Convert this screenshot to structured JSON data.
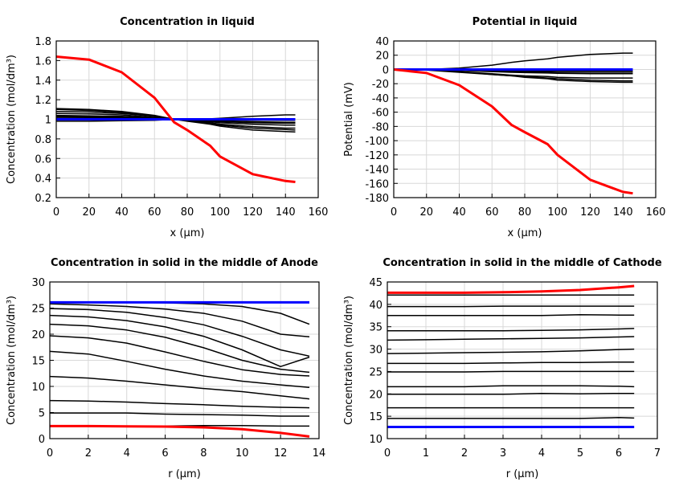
{
  "chart_data": [
    {
      "type": "line",
      "title": "Concentration in liquid",
      "xlabel": "x (μm)",
      "ylabel": "Concentration (mol/dm³)",
      "xlim": [
        0,
        160
      ],
      "ylim": [
        0.2,
        1.8
      ],
      "xticks": [
        0,
        20,
        40,
        60,
        80,
        100,
        120,
        140,
        160
      ],
      "yticks": [
        0.2,
        0.4,
        0.6,
        0.8,
        1,
        1.2,
        1.4,
        1.6,
        1.8
      ],
      "grid": true,
      "x": [
        0,
        20,
        40,
        60,
        72,
        80,
        94,
        100,
        120,
        140,
        146
      ],
      "series": [
        {
          "color": "#000000",
          "values": [
            1.11,
            1.1,
            1.08,
            1.04,
            1.0,
            0.98,
            0.95,
            0.93,
            0.89,
            0.875,
            0.87
          ]
        },
        {
          "color": "#000000",
          "values": [
            1.1,
            1.09,
            1.07,
            1.035,
            1.0,
            0.985,
            0.96,
            0.94,
            0.91,
            0.895,
            0.89
          ]
        },
        {
          "color": "#000000",
          "values": [
            1.08,
            1.075,
            1.06,
            1.03,
            1.0,
            0.99,
            0.965,
            0.95,
            0.925,
            0.91,
            0.91
          ]
        },
        {
          "color": "#000000",
          "values": [
            1.06,
            1.055,
            1.045,
            1.02,
            1.0,
            0.99,
            0.975,
            0.965,
            0.95,
            0.94,
            0.94
          ]
        },
        {
          "color": "#000000",
          "values": [
            1.04,
            1.035,
            1.03,
            1.015,
            1.0,
            0.995,
            0.985,
            0.975,
            0.965,
            0.96,
            0.96
          ]
        },
        {
          "color": "#000000",
          "values": [
            1.03,
            1.028,
            1.022,
            1.01,
            1.0,
            0.997,
            0.99,
            0.985,
            0.975,
            0.97,
            0.97
          ]
        },
        {
          "color": "#000000",
          "values": [
            1.02,
            1.018,
            1.015,
            1.008,
            1.0,
            0.999,
            0.996,
            0.994,
            0.991,
            0.99,
            0.99
          ]
        },
        {
          "color": "#000000",
          "values": [
            0.98,
            0.98,
            0.985,
            0.99,
            1.0,
            1.0,
            1.005,
            1.01,
            1.03,
            1.045,
            1.045
          ]
        },
        {
          "color": "#0000ff",
          "values": [
            1,
            1,
            1,
            1,
            1,
            1,
            1,
            1,
            1,
            1,
            1
          ]
        },
        {
          "color": "#ff0000",
          "values": [
            1.64,
            1.61,
            1.48,
            1.22,
            0.97,
            0.89,
            0.73,
            0.62,
            0.44,
            0.37,
            0.36
          ]
        }
      ]
    },
    {
      "type": "line",
      "title": "Potential in liquid",
      "xlabel": "x (μm)",
      "ylabel": "Potential (mV)",
      "xlim": [
        0,
        160
      ],
      "ylim": [
        -180,
        40
      ],
      "xticks": [
        0,
        20,
        40,
        60,
        80,
        100,
        120,
        140,
        160
      ],
      "yticks": [
        -180,
        -160,
        -140,
        -120,
        -100,
        -80,
        -60,
        -40,
        -20,
        0,
        20,
        40
      ],
      "grid": true,
      "x": [
        0,
        20,
        40,
        60,
        72,
        80,
        94,
        100,
        120,
        140,
        146
      ],
      "series": [
        {
          "color": "#000000",
          "values": [
            0,
            0,
            2,
            6,
            10,
            12,
            15,
            17,
            21,
            23,
            23
          ]
        },
        {
          "color": "#000000",
          "values": [
            0,
            0,
            -1,
            -1.5,
            -2,
            -2,
            -2,
            -2,
            -2,
            -2,
            -2
          ]
        },
        {
          "color": "#000000",
          "values": [
            0,
            0,
            -1,
            -2,
            -3,
            -3,
            -3.5,
            -4,
            -4,
            -4,
            -4
          ]
        },
        {
          "color": "#000000",
          "values": [
            0,
            0,
            -1.5,
            -3,
            -4,
            -4.5,
            -5,
            -5.5,
            -6,
            -6,
            -6
          ]
        },
        {
          "color": "#000000",
          "values": [
            0,
            -0.5,
            -3,
            -6,
            -8,
            -9,
            -10,
            -11,
            -12,
            -12,
            -12
          ]
        },
        {
          "color": "#000000",
          "values": [
            0,
            -0.5,
            -3,
            -7,
            -9,
            -10,
            -12,
            -13,
            -15,
            -16,
            -16
          ]
        },
        {
          "color": "#000000",
          "values": [
            0,
            -1,
            -4,
            -7,
            -9,
            -11,
            -13,
            -15,
            -17,
            -18,
            -18
          ]
        },
        {
          "color": "#0000ff",
          "values": [
            0,
            0,
            0,
            0,
            0,
            0,
            0,
            0,
            0,
            0,
            0
          ]
        },
        {
          "color": "#ff0000",
          "values": [
            0,
            -5,
            -22,
            -52,
            -78,
            -88,
            -105,
            -120,
            -155,
            -172,
            -174
          ]
        }
      ]
    },
    {
      "type": "line",
      "title": "Concentration in solid in the middle of Anode",
      "xlabel": "r (μm)",
      "ylabel": "Concentration (mol/dm³)",
      "xlim": [
        0,
        14
      ],
      "ylim": [
        0,
        30
      ],
      "xticks": [
        0,
        2,
        4,
        6,
        8,
        10,
        12,
        14
      ],
      "yticks": [
        0,
        5,
        10,
        15,
        20,
        25,
        30
      ],
      "grid": true,
      "x": [
        0,
        2,
        4,
        6,
        8,
        10,
        12,
        13.5
      ],
      "series": [
        {
          "color": "#000000",
          "values": [
            26.1,
            26.1,
            26.1,
            26.0,
            25.8,
            25.3,
            24.0,
            21.9
          ]
        },
        {
          "color": "#000000",
          "values": [
            25.8,
            25.6,
            25.3,
            24.8,
            24.0,
            22.5,
            20.0,
            19.5
          ]
        },
        {
          "color": "#000000",
          "values": [
            24.9,
            24.7,
            24.2,
            23.2,
            21.8,
            19.6,
            17.0,
            15.8
          ]
        },
        {
          "color": "#000000",
          "values": [
            23.6,
            23.3,
            22.6,
            21.4,
            19.6,
            17.0,
            13.8,
            15.6
          ]
        },
        {
          "color": "#000000",
          "values": [
            21.9,
            21.6,
            20.8,
            19.4,
            17.4,
            15.0,
            13.3,
            12.7
          ]
        },
        {
          "color": "#000000",
          "values": [
            19.7,
            19.3,
            18.3,
            16.6,
            14.8,
            13.2,
            12.3,
            12.0
          ]
        },
        {
          "color": "#000000",
          "values": [
            16.7,
            16.2,
            14.8,
            13.3,
            12.0,
            11.0,
            10.3,
            9.8
          ]
        },
        {
          "color": "#000000",
          "values": [
            11.9,
            11.6,
            11.0,
            10.3,
            9.6,
            9.0,
            8.2,
            7.6
          ]
        },
        {
          "color": "#000000",
          "values": [
            7.3,
            7.2,
            7.0,
            6.7,
            6.5,
            6.2,
            6.0,
            5.9
          ]
        },
        {
          "color": "#000000",
          "values": [
            4.9,
            4.9,
            4.9,
            4.7,
            4.6,
            4.5,
            4.3,
            4.3
          ]
        },
        {
          "color": "#000000",
          "values": [
            2.4,
            2.4,
            2.4,
            2.4,
            2.5,
            2.5,
            2.4,
            2.4
          ]
        },
        {
          "color": "#0000ff",
          "values": [
            26.1,
            26.1,
            26.1,
            26.1,
            26.1,
            26.1,
            26.1,
            26.1
          ]
        },
        {
          "color": "#ff0000",
          "values": [
            2.4,
            2.4,
            2.35,
            2.3,
            2.15,
            1.8,
            1.1,
            0.4
          ]
        }
      ]
    },
    {
      "type": "line",
      "title": "Concentration in solid in the middle of Cathode",
      "xlabel": "r (μm)",
      "ylabel": "Concentration (mol/dm³)",
      "xlim": [
        0,
        7
      ],
      "ylim": [
        10,
        45
      ],
      "xticks": [
        0,
        1,
        2,
        3,
        4,
        5,
        6,
        7
      ],
      "yticks": [
        10,
        15,
        20,
        25,
        30,
        35,
        40,
        45
      ],
      "grid": true,
      "x": [
        0,
        1,
        2,
        3,
        4,
        5,
        6,
        6.4
      ],
      "series": [
        {
          "color": "#000000",
          "values": [
            42.1,
            42.1,
            42.1,
            42.1,
            42.1,
            42.1,
            42.1,
            42.1
          ]
        },
        {
          "color": "#000000",
          "values": [
            39.5,
            39.5,
            39.5,
            39.6,
            39.6,
            39.6,
            39.6,
            39.6
          ]
        },
        {
          "color": "#000000",
          "values": [
            37.5,
            37.5,
            37.5,
            37.5,
            37.5,
            37.7,
            37.6,
            37.6
          ]
        },
        {
          "color": "#000000",
          "values": [
            34.1,
            34.1,
            34.1,
            34.1,
            34.2,
            34.3,
            34.5,
            34.6
          ]
        },
        {
          "color": "#000000",
          "values": [
            32.0,
            32.1,
            32.2,
            32.3,
            32.4,
            32.5,
            32.7,
            32.8
          ]
        },
        {
          "color": "#000000",
          "values": [
            29.0,
            29.1,
            29.2,
            29.3,
            29.4,
            29.6,
            29.9,
            30.0
          ]
        },
        {
          "color": "#000000",
          "values": [
            26.8,
            26.8,
            26.8,
            26.9,
            27.0,
            27.0,
            27.1,
            27.1
          ]
        },
        {
          "color": "#000000",
          "values": [
            24.9,
            24.9,
            24.9,
            25.0,
            25.0,
            25.0,
            25.0,
            25.0
          ]
        },
        {
          "color": "#000000",
          "values": [
            21.6,
            21.6,
            21.6,
            21.8,
            21.8,
            21.8,
            21.7,
            21.6
          ]
        },
        {
          "color": "#000000",
          "values": [
            19.9,
            19.9,
            19.9,
            19.9,
            20.1,
            20.0,
            20.1,
            20.1
          ]
        },
        {
          "color": "#000000",
          "values": [
            16.9,
            16.9,
            16.9,
            16.9,
            16.9,
            16.9,
            16.9,
            16.9
          ]
        },
        {
          "color": "#000000",
          "values": [
            14.5,
            14.5,
            14.5,
            14.5,
            14.5,
            14.5,
            14.7,
            14.6
          ]
        },
        {
          "color": "#0000ff",
          "values": [
            12.6,
            12.6,
            12.6,
            12.6,
            12.6,
            12.6,
            12.6,
            12.6
          ]
        },
        {
          "color": "#ff0000",
          "values": [
            42.6,
            42.6,
            42.6,
            42.7,
            42.9,
            43.2,
            43.8,
            44.1
          ]
        }
      ]
    }
  ]
}
